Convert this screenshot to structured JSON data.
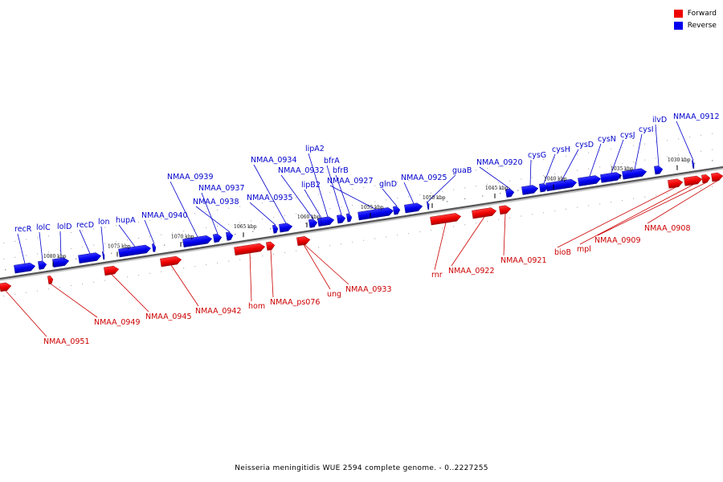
{
  "legend": {
    "forward_label": "Forward",
    "reverse_label": "Reverse",
    "forward_color": "#ee0000",
    "reverse_color": "#0000ee"
  },
  "footer": "Neisseria meningitidis WUE 2594 complete genome. - 0..2227255",
  "backbone_color": "#555555",
  "ticks": [
    "1030 kbp",
    "1035 kbp",
    "1040 kbp",
    "1045 kbp",
    "1050 kbp",
    "1055 kbp",
    "1060 kbp",
    "1065 kbp",
    "1070 kbp",
    "1075 kbp",
    "1080 kbp"
  ],
  "reverse_genes": [
    "recR",
    "lolC",
    "lolD",
    "recD",
    "lon",
    "hupA",
    "NMAA_0940",
    "NMAA_0939",
    "NMAA_0937",
    "NMAA_0938",
    "NMAA_0935",
    "NMAA_0934",
    "NMAA_0932",
    "lipB2",
    "lipA2",
    "bfrA",
    "bfrB",
    "NMAA_0927",
    "glnD",
    "NMAA_0925",
    "guaB",
    "NMAA_0920",
    "cysG",
    "cysH",
    "cysD",
    "cysN",
    "cysJ",
    "cysI",
    "ilvD",
    "NMAA_0912"
  ],
  "forward_genes": [
    "NMAA_0951",
    "NMAA_0949",
    "NMAA_0945",
    "NMAA_0942",
    "hom",
    "NMAA_ps076",
    "ung",
    "NMAA_0933",
    "rnr",
    "NMAA_0922",
    "NMAA_0921",
    "bioB",
    "mpl",
    "NMAA_0909",
    "NMAA_0908"
  ]
}
